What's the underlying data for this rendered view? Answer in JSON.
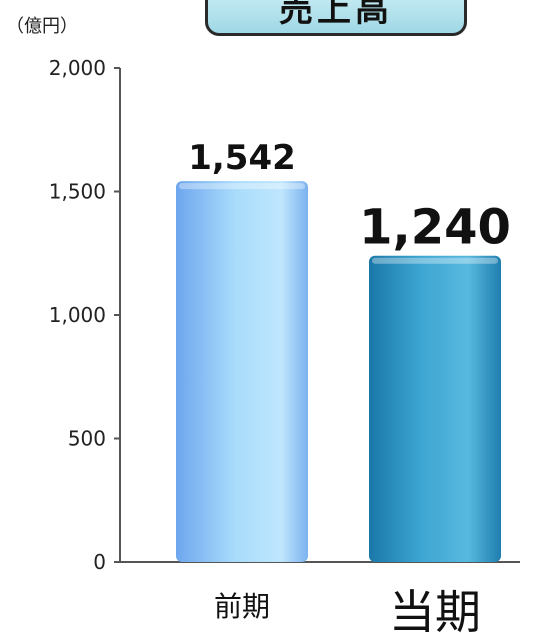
{
  "chart_data": {
    "type": "bar",
    "title": "売上高",
    "unit_label": "（億円）",
    "categories": [
      "前期",
      "当期"
    ],
    "values": [
      1542,
      1240
    ],
    "value_labels": [
      "1,542",
      "1,240"
    ],
    "ylim": [
      0,
      2000
    ],
    "yticks": [
      0,
      500,
      1000,
      1500,
      2000
    ],
    "ytick_labels": [
      "0",
      "500",
      "1,000",
      "1,500",
      "2,000"
    ],
    "grid": false,
    "colors": {
      "bar_previous": "#8cc6f4",
      "bar_current": "#2f97c4",
      "axis": "#555555"
    }
  }
}
